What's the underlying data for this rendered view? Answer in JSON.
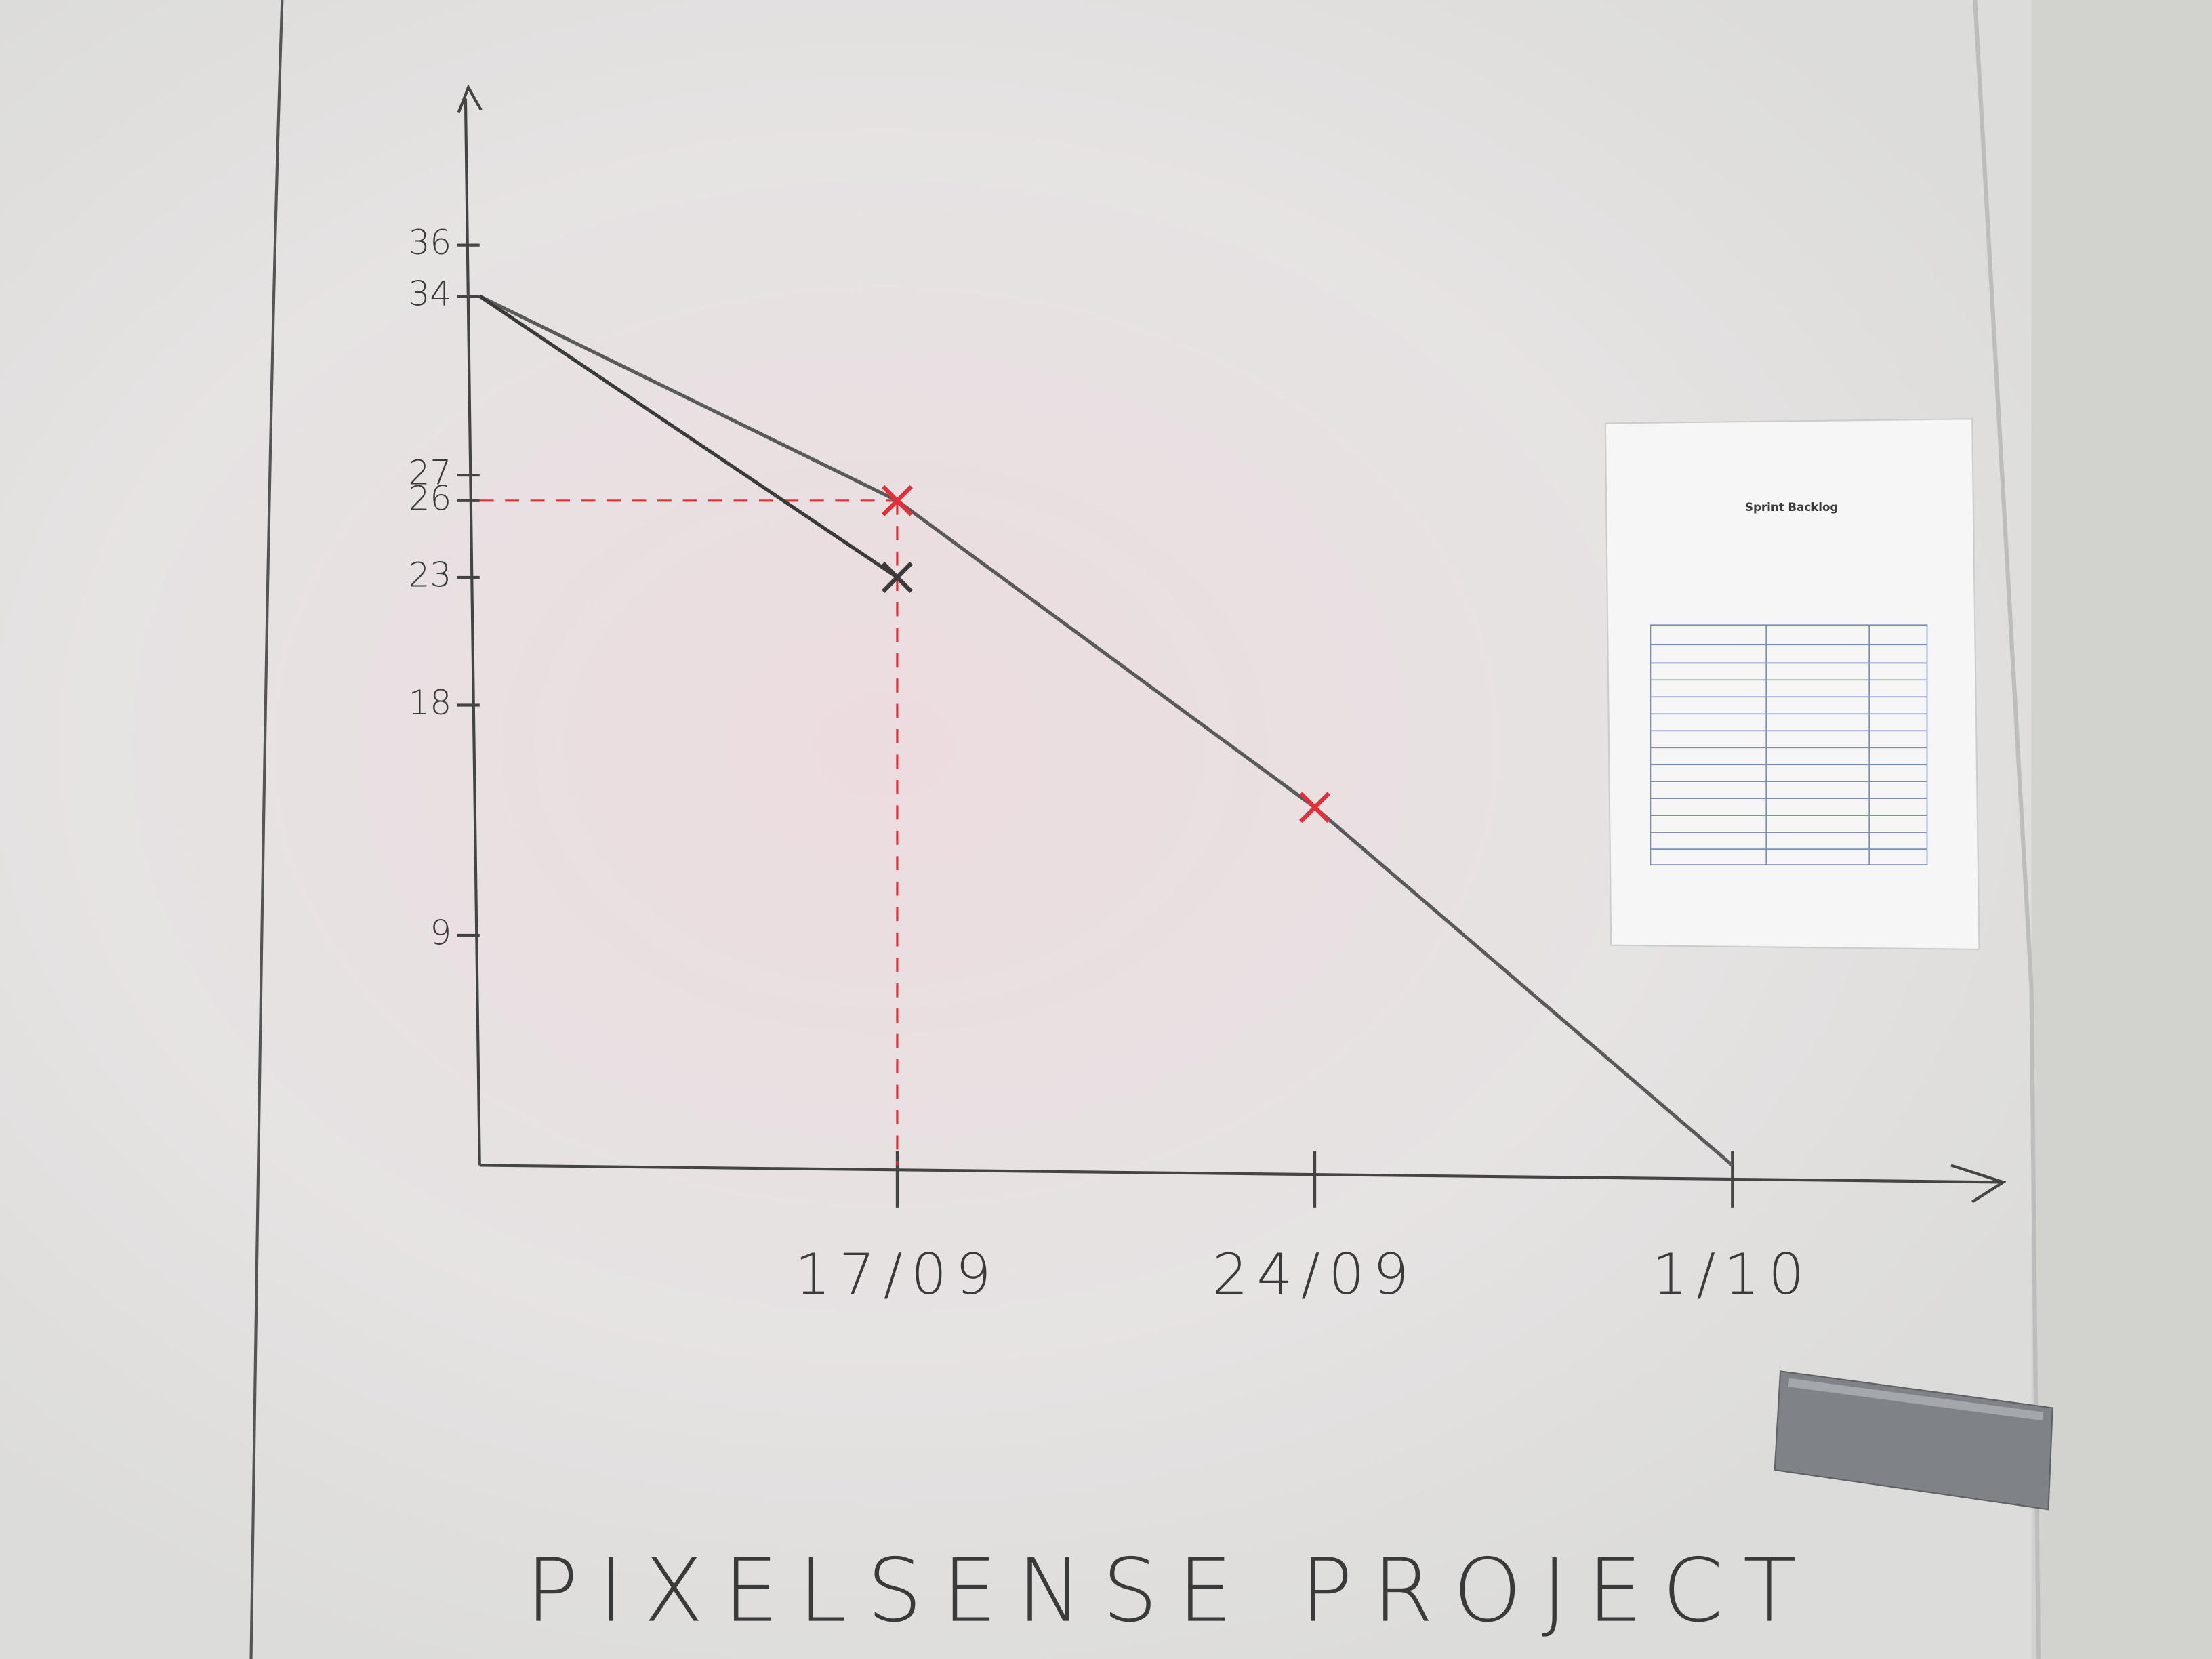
{
  "chart_data": {
    "type": "line",
    "title": "PIXELSENSE PROJECT",
    "categories": [
      null,
      "17/09",
      "24/09",
      "1/10"
    ],
    "series": [
      {
        "color": "#5a5a5a",
        "values": [
          34,
          26,
          14,
          0
        ]
      },
      {
        "color": "#3a3a3a",
        "values": [
          34,
          23,
          null,
          null
        ]
      }
    ],
    "highlight_color": "#e0303a",
    "ylim": [
      0,
      42
    ],
    "yticks": [
      9,
      18,
      23,
      26,
      27,
      34,
      36
    ]
  },
  "paper": {
    "title": "Sprint Backlog"
  }
}
